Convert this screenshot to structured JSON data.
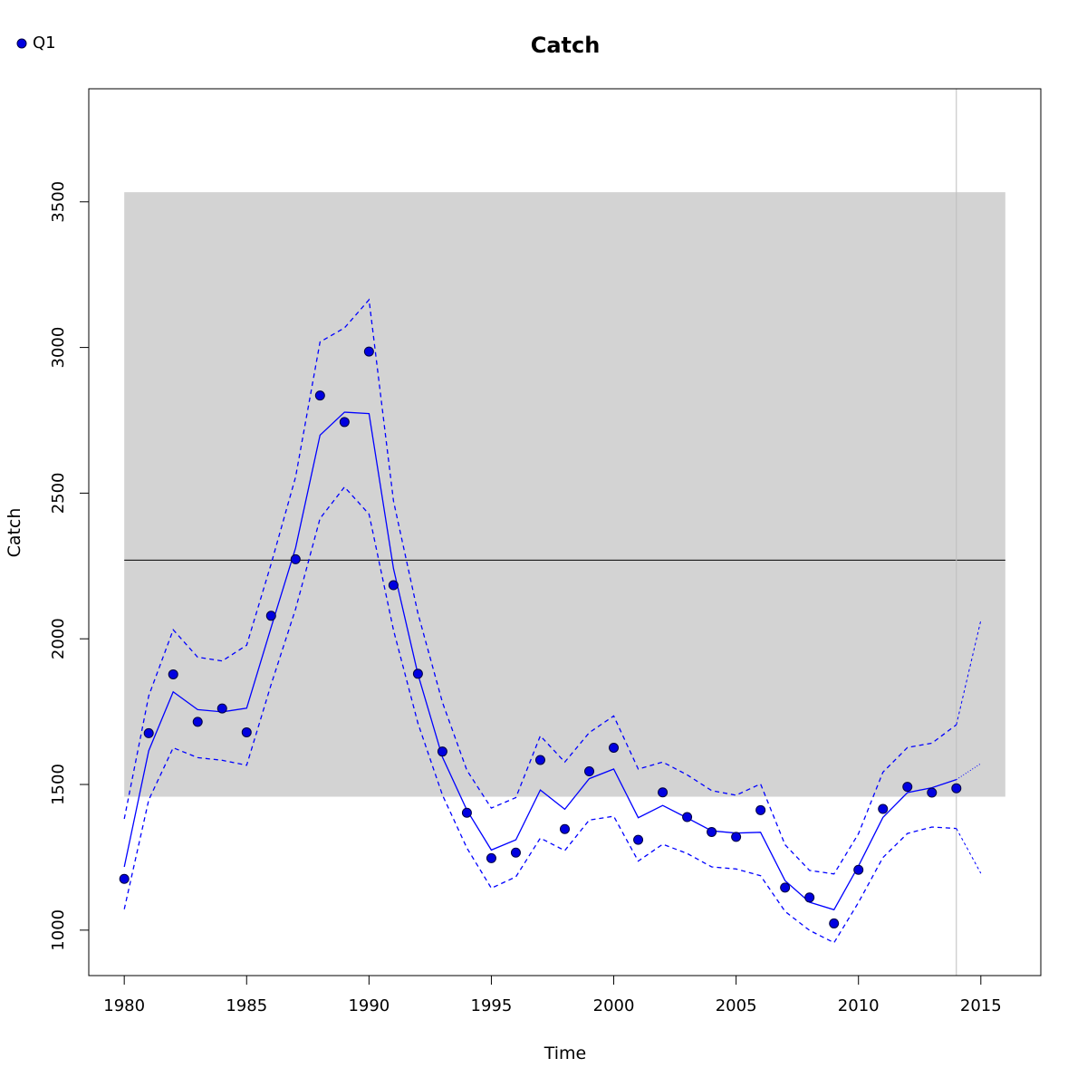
{
  "chart_data": {
    "type": "line",
    "title": "Catch",
    "xlabel": "Time",
    "ylabel": "Catch",
    "xlim": [
      1978.55,
      2017.45
    ],
    "ylim": [
      844,
      3888
    ],
    "x_ticks": [
      1980,
      1985,
      1990,
      1995,
      2000,
      2005,
      2010,
      2015
    ],
    "y_ticks": [
      1000,
      1500,
      2000,
      2500,
      3000,
      3500
    ],
    "legend": {
      "label": "Q1",
      "placement": "top-left"
    },
    "band": {
      "x": [
        1980,
        2016
      ],
      "y": [
        1458,
        3533
      ],
      "color": "#d3d3d3"
    },
    "hline": {
      "y": 2270,
      "color": "#000000"
    },
    "vline": {
      "x": 2014,
      "color": "#bebebe"
    },
    "colors": {
      "series": "#0000ff",
      "point_fill": "#0000e0",
      "point_stroke": "#000040"
    },
    "observed": {
      "x": [
        1980,
        1981,
        1982,
        1983,
        1984,
        1985,
        1986,
        1987,
        1988,
        1989,
        1990,
        1991,
        1992,
        1993,
        1994,
        1995,
        1996,
        1997,
        1998,
        1999,
        2000,
        2001,
        2002,
        2003,
        2004,
        2005,
        2006,
        2007,
        2008,
        2009,
        2010,
        2011,
        2012,
        2013,
        2014
      ],
      "y": [
        1176,
        1676,
        1878,
        1715,
        1761,
        1679,
        2079,
        2273,
        2835,
        2744,
        2986,
        2184,
        1880,
        1613,
        1403,
        1247,
        1266,
        1584,
        1347,
        1545,
        1626,
        1310,
        1473,
        1388,
        1337,
        1320,
        1412,
        1146,
        1112,
        1023,
        1207,
        1416,
        1492,
        1472,
        1487
      ]
    },
    "fit": {
      "x": [
        1980,
        1981,
        1982,
        1983,
        1984,
        1985,
        1986,
        1987,
        1988,
        1989,
        1990,
        1991,
        1992,
        1993,
        1994,
        1995,
        1996,
        1997,
        1998,
        1999,
        2000,
        2001,
        2002,
        2003,
        2004,
        2005,
        2006,
        2007,
        2008,
        2009,
        2010,
        2011,
        2012,
        2013,
        2014
      ],
      "y": [
        1217,
        1616,
        1818,
        1757,
        1749,
        1762,
        2039,
        2312,
        2699,
        2778,
        2773,
        2241,
        1878,
        1594,
        1412,
        1275,
        1310,
        1481,
        1415,
        1520,
        1553,
        1386,
        1428,
        1385,
        1341,
        1333,
        1336,
        1170,
        1096,
        1070,
        1220,
        1387,
        1472,
        1489,
        1517
      ]
    },
    "upper": {
      "x": [
        1980,
        1981,
        1982,
        1983,
        1984,
        1985,
        1986,
        1987,
        1988,
        1989,
        1990,
        1991,
        1992,
        1993,
        1994,
        1995,
        1996,
        1997,
        1998,
        1999,
        2000,
        2001,
        2002,
        2003,
        2004,
        2005,
        2006,
        2007,
        2008,
        2009,
        2010,
        2011,
        2012,
        2013,
        2014
      ],
      "y": [
        1382,
        1804,
        2031,
        1937,
        1924,
        1978,
        2257,
        2555,
        3019,
        3067,
        3164,
        2473,
        2087,
        1782,
        1549,
        1419,
        1455,
        1667,
        1577,
        1678,
        1735,
        1553,
        1577,
        1533,
        1479,
        1463,
        1502,
        1293,
        1205,
        1193,
        1331,
        1542,
        1627,
        1642,
        1705
      ]
    },
    "lower": {
      "x": [
        1980,
        1981,
        1982,
        1983,
        1984,
        1985,
        1986,
        1987,
        1988,
        1989,
        1990,
        1991,
        1992,
        1993,
        1994,
        1995,
        1996,
        1997,
        1998,
        1999,
        2000,
        2001,
        2002,
        2003,
        2004,
        2005,
        2006,
        2007,
        2008,
        2009,
        2010,
        2011,
        2012,
        2013,
        2014
      ],
      "y": [
        1072,
        1447,
        1626,
        1592,
        1583,
        1566,
        1843,
        2102,
        2413,
        2521,
        2428,
        2030,
        1710,
        1464,
        1282,
        1144,
        1183,
        1316,
        1273,
        1378,
        1391,
        1237,
        1295,
        1263,
        1217,
        1210,
        1187,
        1064,
        999,
        957,
        1095,
        1249,
        1332,
        1354,
        1349
      ]
    },
    "projection": {
      "x": [
        2014,
        2015
      ],
      "fit": [
        1517,
        1572
      ],
      "upper": [
        1705,
        2063
      ],
      "lower": [
        1349,
        1195
      ]
    }
  }
}
